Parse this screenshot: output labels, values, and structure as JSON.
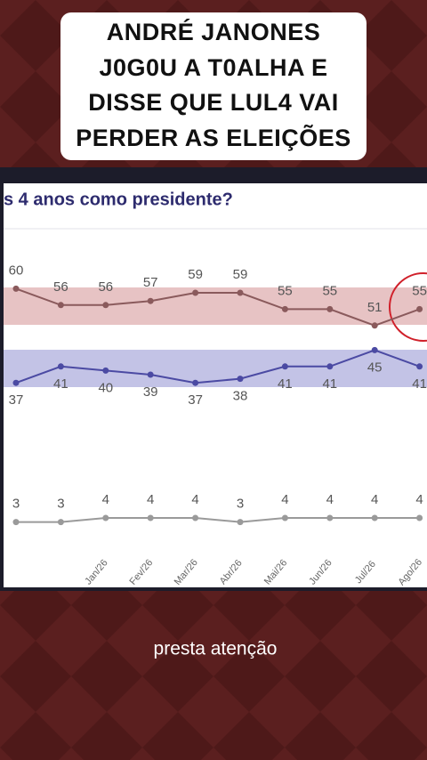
{
  "header": {
    "lines": [
      "ANDRÉ JANONES",
      "J0G0U A T0ALHA E",
      "DISSE QUE LUL4 VAI",
      "PERDER AS ELEIÇÕES"
    ]
  },
  "caption": "presta atenção",
  "chart_data": {
    "type": "line",
    "title": "s 4 anos como presidente?",
    "categories": [
      null,
      null,
      "Jan/26",
      "Fev/26",
      "Mar/26",
      "Abr/26",
      "Mai/26",
      "Jun/26",
      "Jul/26",
      "Ago/26"
    ],
    "series": [
      {
        "color": "#8a5a5c",
        "values": [
          60,
          56,
          56,
          57,
          59,
          59,
          55,
          55,
          51,
          55
        ]
      },
      {
        "color": "#4b4aa3",
        "values": [
          37,
          41,
          40,
          39,
          37,
          38,
          41,
          41,
          45,
          41
        ]
      },
      {
        "color": "#9a9a9a",
        "values": [
          3,
          3,
          4,
          4,
          4,
          3,
          4,
          4,
          4,
          4
        ]
      }
    ],
    "ylim": [
      -1,
      74
    ]
  }
}
